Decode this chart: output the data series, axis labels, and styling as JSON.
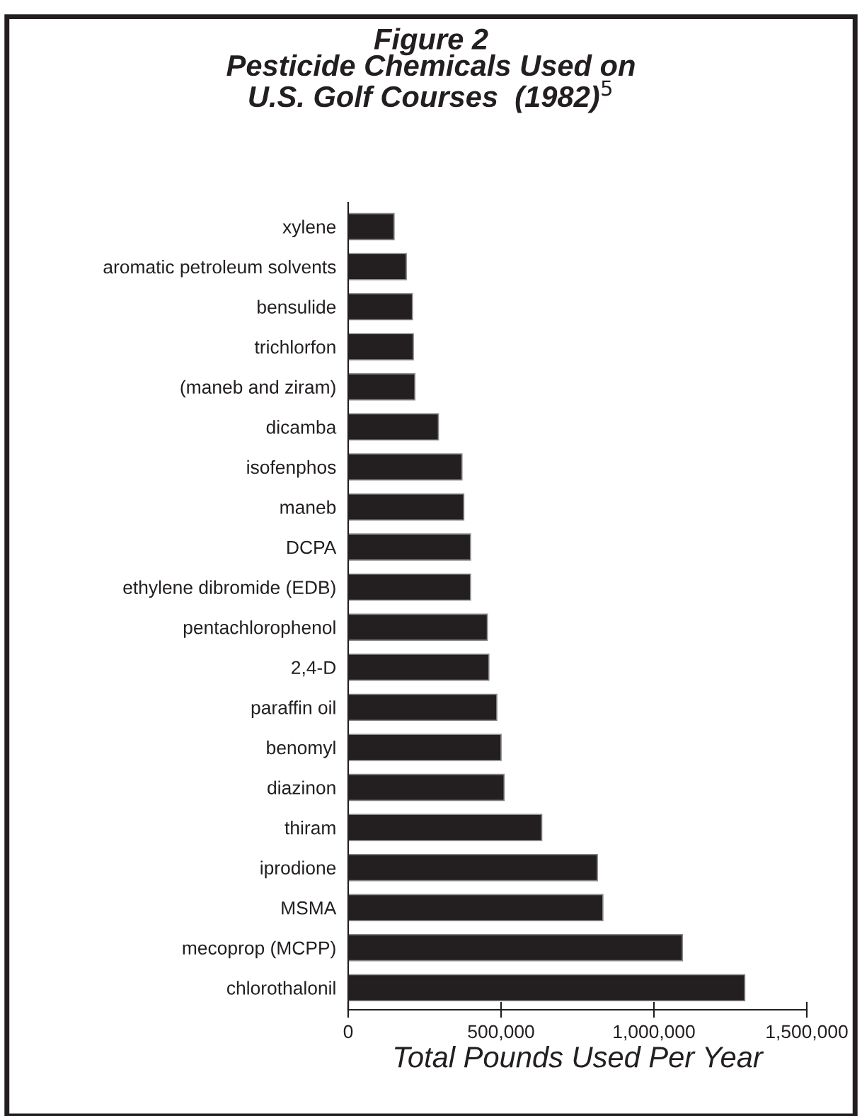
{
  "chart_data": {
    "type": "bar",
    "orientation": "horizontal",
    "title": "Figure 2\nPesticide Chemicals Used on\nU.S. Golf Courses  (1982)$^{5}$",
    "xlabel": "Total Pounds Used Per Year",
    "categories": [
      "xylene",
      "aromatic petroleum solvents",
      "bensulide",
      "trichlorfon",
      "(maneb and ziram)",
      "dicamba",
      "isofenphos",
      "maneb",
      "DCPA",
      "ethylene dibromide (EDB)",
      "pentachlorophenol",
      "2,4-D",
      "paraffin oil",
      "benomyl",
      "diazinon",
      "thiram",
      "iprodione",
      "MSMA",
      "mecoprop (MCPP)",
      "chlorothalonil"
    ],
    "values": [
      150000,
      190000,
      210000,
      213000,
      218000,
      295000,
      372000,
      378000,
      400000,
      400000,
      455000,
      460000,
      486000,
      500000,
      510000,
      633000,
      815000,
      833000,
      1093000,
      1297000
    ],
    "color": "#231f20",
    "xlim": [
      0,
      1500000
    ],
    "xticks": [
      0,
      {
        "value": 500000,
        "label": "500,000"
      },
      {
        "value": 1000000,
        "label": "1,000,000"
      },
      {
        "value": 1500000,
        "label": "1,500,000"
      }
    ],
    "grid": false
  }
}
